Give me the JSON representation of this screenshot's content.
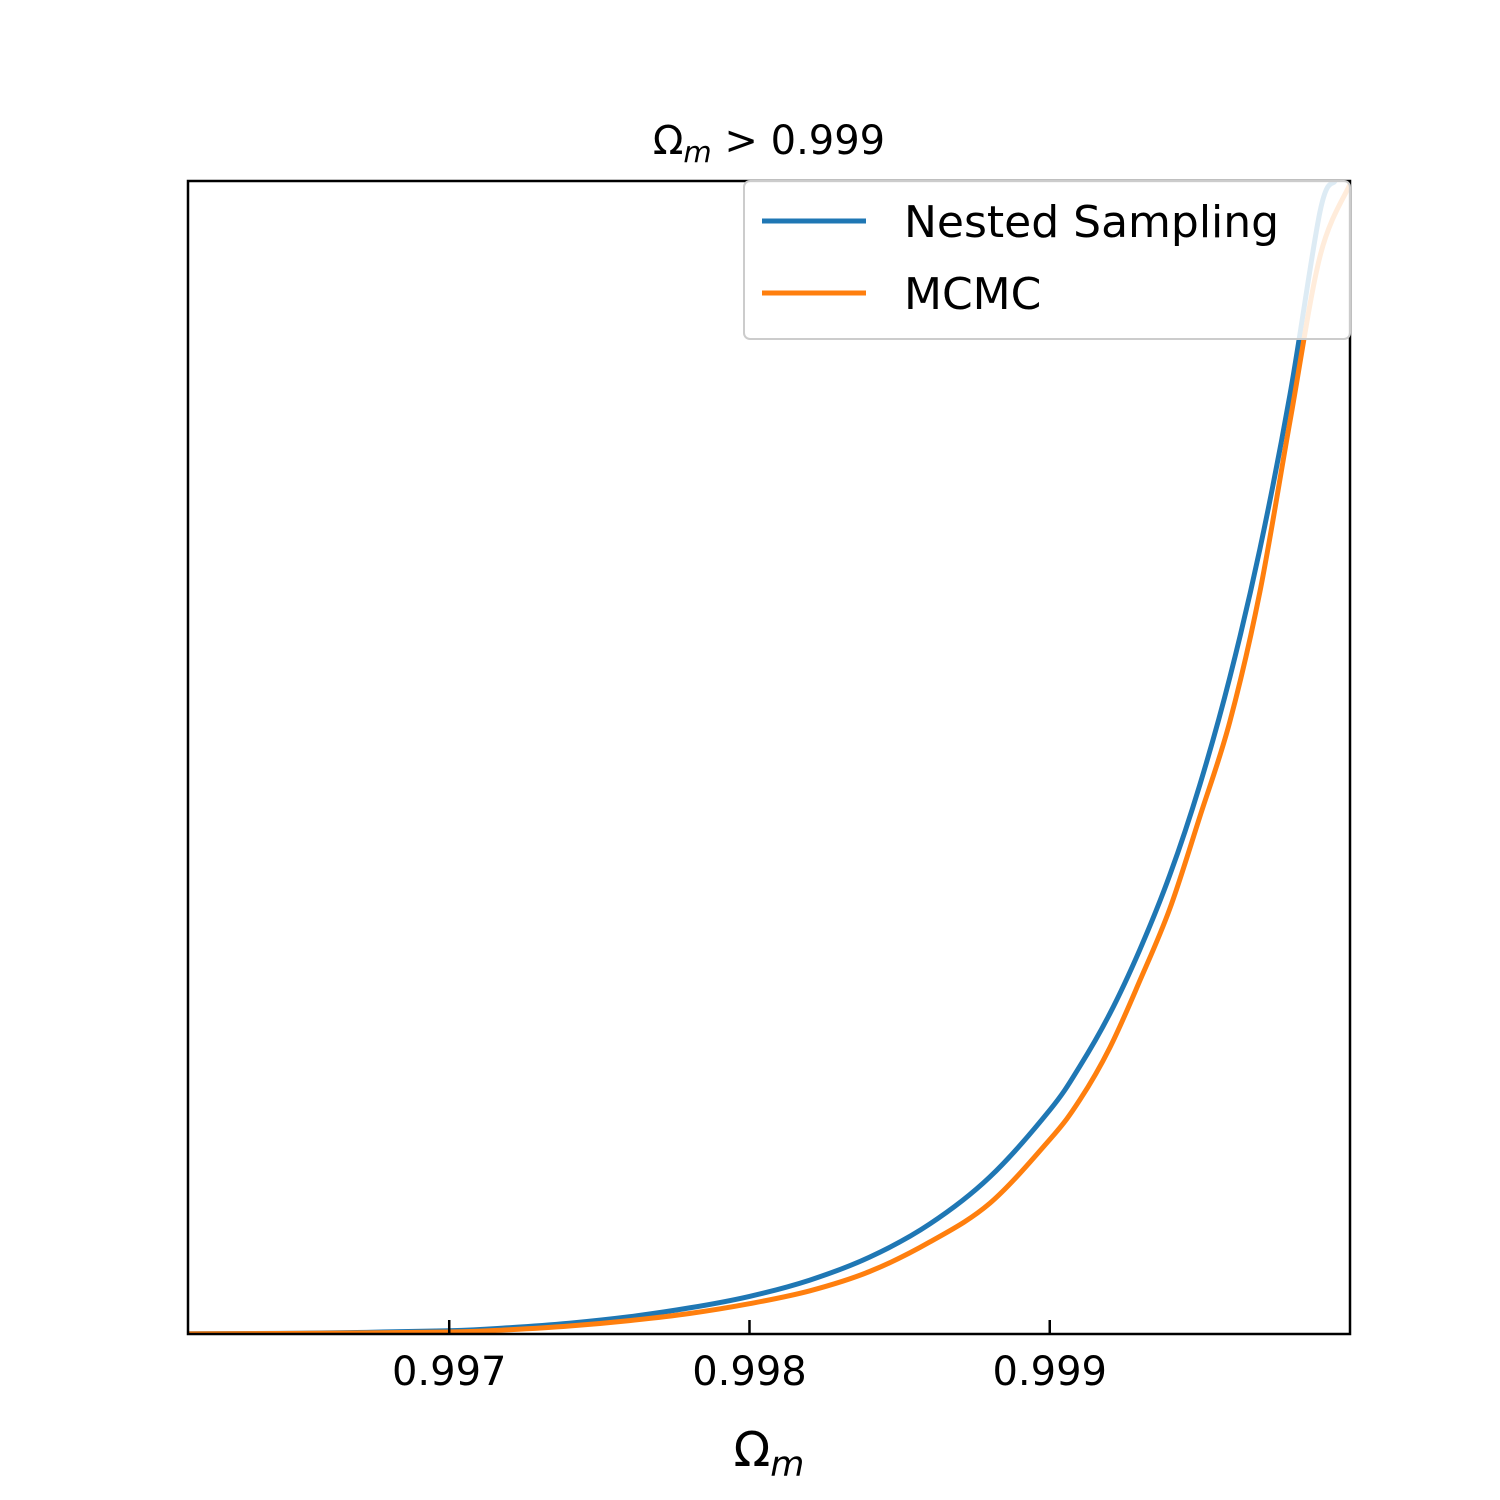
{
  "chart_data": {
    "type": "line",
    "title": {
      "symbol": "Ω",
      "subscript": "m",
      "rest": " > 0.999"
    },
    "xlabel": {
      "symbol": "Ω",
      "subscript": "m"
    },
    "ylabel": "",
    "xlim": [
      0.99613,
      1.0
    ],
    "ylim": [
      0,
      1.0
    ],
    "y_ticks_shown": false,
    "grid": false,
    "x_ticks": [
      {
        "value": 0.997,
        "label": "0.997"
      },
      {
        "value": 0.998,
        "label": "0.998"
      },
      {
        "value": 0.999,
        "label": "0.999"
      }
    ],
    "legend": {
      "placement": "top-right",
      "entries": [
        {
          "label": "Nested Sampling",
          "color": "#1f77b4"
        },
        {
          "label": "MCMC",
          "color": "#ff7f0e"
        }
      ]
    },
    "series": [
      {
        "name": "Nested Sampling",
        "color": "#1f77b4",
        "x": [
          0.99613,
          0.9965,
          0.997,
          0.9972,
          0.9974,
          0.9976,
          0.9978,
          0.998,
          0.9982,
          0.9984,
          0.9986,
          0.9988,
          0.999,
          0.9991,
          0.9992,
          0.9993,
          0.9994,
          0.9995,
          0.9996,
          0.9997,
          0.9998,
          0.9999,
          0.99995
        ],
        "y": [
          0.0002,
          0.0007,
          0.0028,
          0.0055,
          0.0094,
          0.015,
          0.0226,
          0.0326,
          0.0467,
          0.0667,
          0.0953,
          0.1361,
          0.1941,
          0.2322,
          0.2778,
          0.3333,
          0.3981,
          0.4765,
          0.5697,
          0.6808,
          0.8143,
          0.9734,
          1.0
        ]
      },
      {
        "name": "MCMC",
        "color": "#ff7f0e",
        "x": [
          0.99613,
          0.9965,
          0.997,
          0.9972,
          0.9974,
          0.9976,
          0.9978,
          0.998,
          0.9982,
          0.9984,
          0.9986,
          0.9988,
          0.999,
          0.9991,
          0.9992,
          0.9993,
          0.9994,
          0.9995,
          0.9996,
          0.9997,
          0.9998,
          0.9999,
          1.0
        ],
        "y": [
          0.0001,
          0.0005,
          0.0017,
          0.0037,
          0.0069,
          0.0116,
          0.0178,
          0.0263,
          0.0374,
          0.0542,
          0.0797,
          0.1133,
          0.1686,
          0.203,
          0.2483,
          0.3063,
          0.3689,
          0.4488,
          0.5313,
          0.6437,
          0.7912,
          0.9347,
          0.9972
        ]
      }
    ]
  }
}
